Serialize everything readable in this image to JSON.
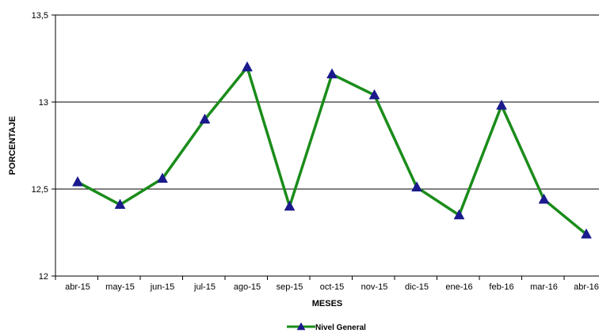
{
  "chart_data": {
    "type": "line",
    "title": "",
    "xlabel": "MESES",
    "ylabel": "PORCENTAJE",
    "ylim": [
      12,
      13.5
    ],
    "yticks": [
      12,
      12.5,
      13,
      13.5
    ],
    "ytick_labels": [
      "12",
      "12,5",
      "13",
      "13,5"
    ],
    "grid": "horizontal",
    "legend_position": "bottom",
    "categories": [
      "abr-15",
      "may-15",
      "jun-15",
      "jul-15",
      "ago-15",
      "sep-15",
      "oct-15",
      "nov-15",
      "dic-15",
      "ene-16",
      "feb-16",
      "mar-16",
      "abr-16"
    ],
    "series": [
      {
        "name": "Nivel General",
        "line_color": "#1a8c1a",
        "marker_color": "#1a1a8c",
        "marker": "triangle",
        "values": [
          12.54,
          12.41,
          12.56,
          12.9,
          13.2,
          12.4,
          13.16,
          13.04,
          12.51,
          12.35,
          12.98,
          12.44,
          12.24
        ]
      }
    ]
  }
}
